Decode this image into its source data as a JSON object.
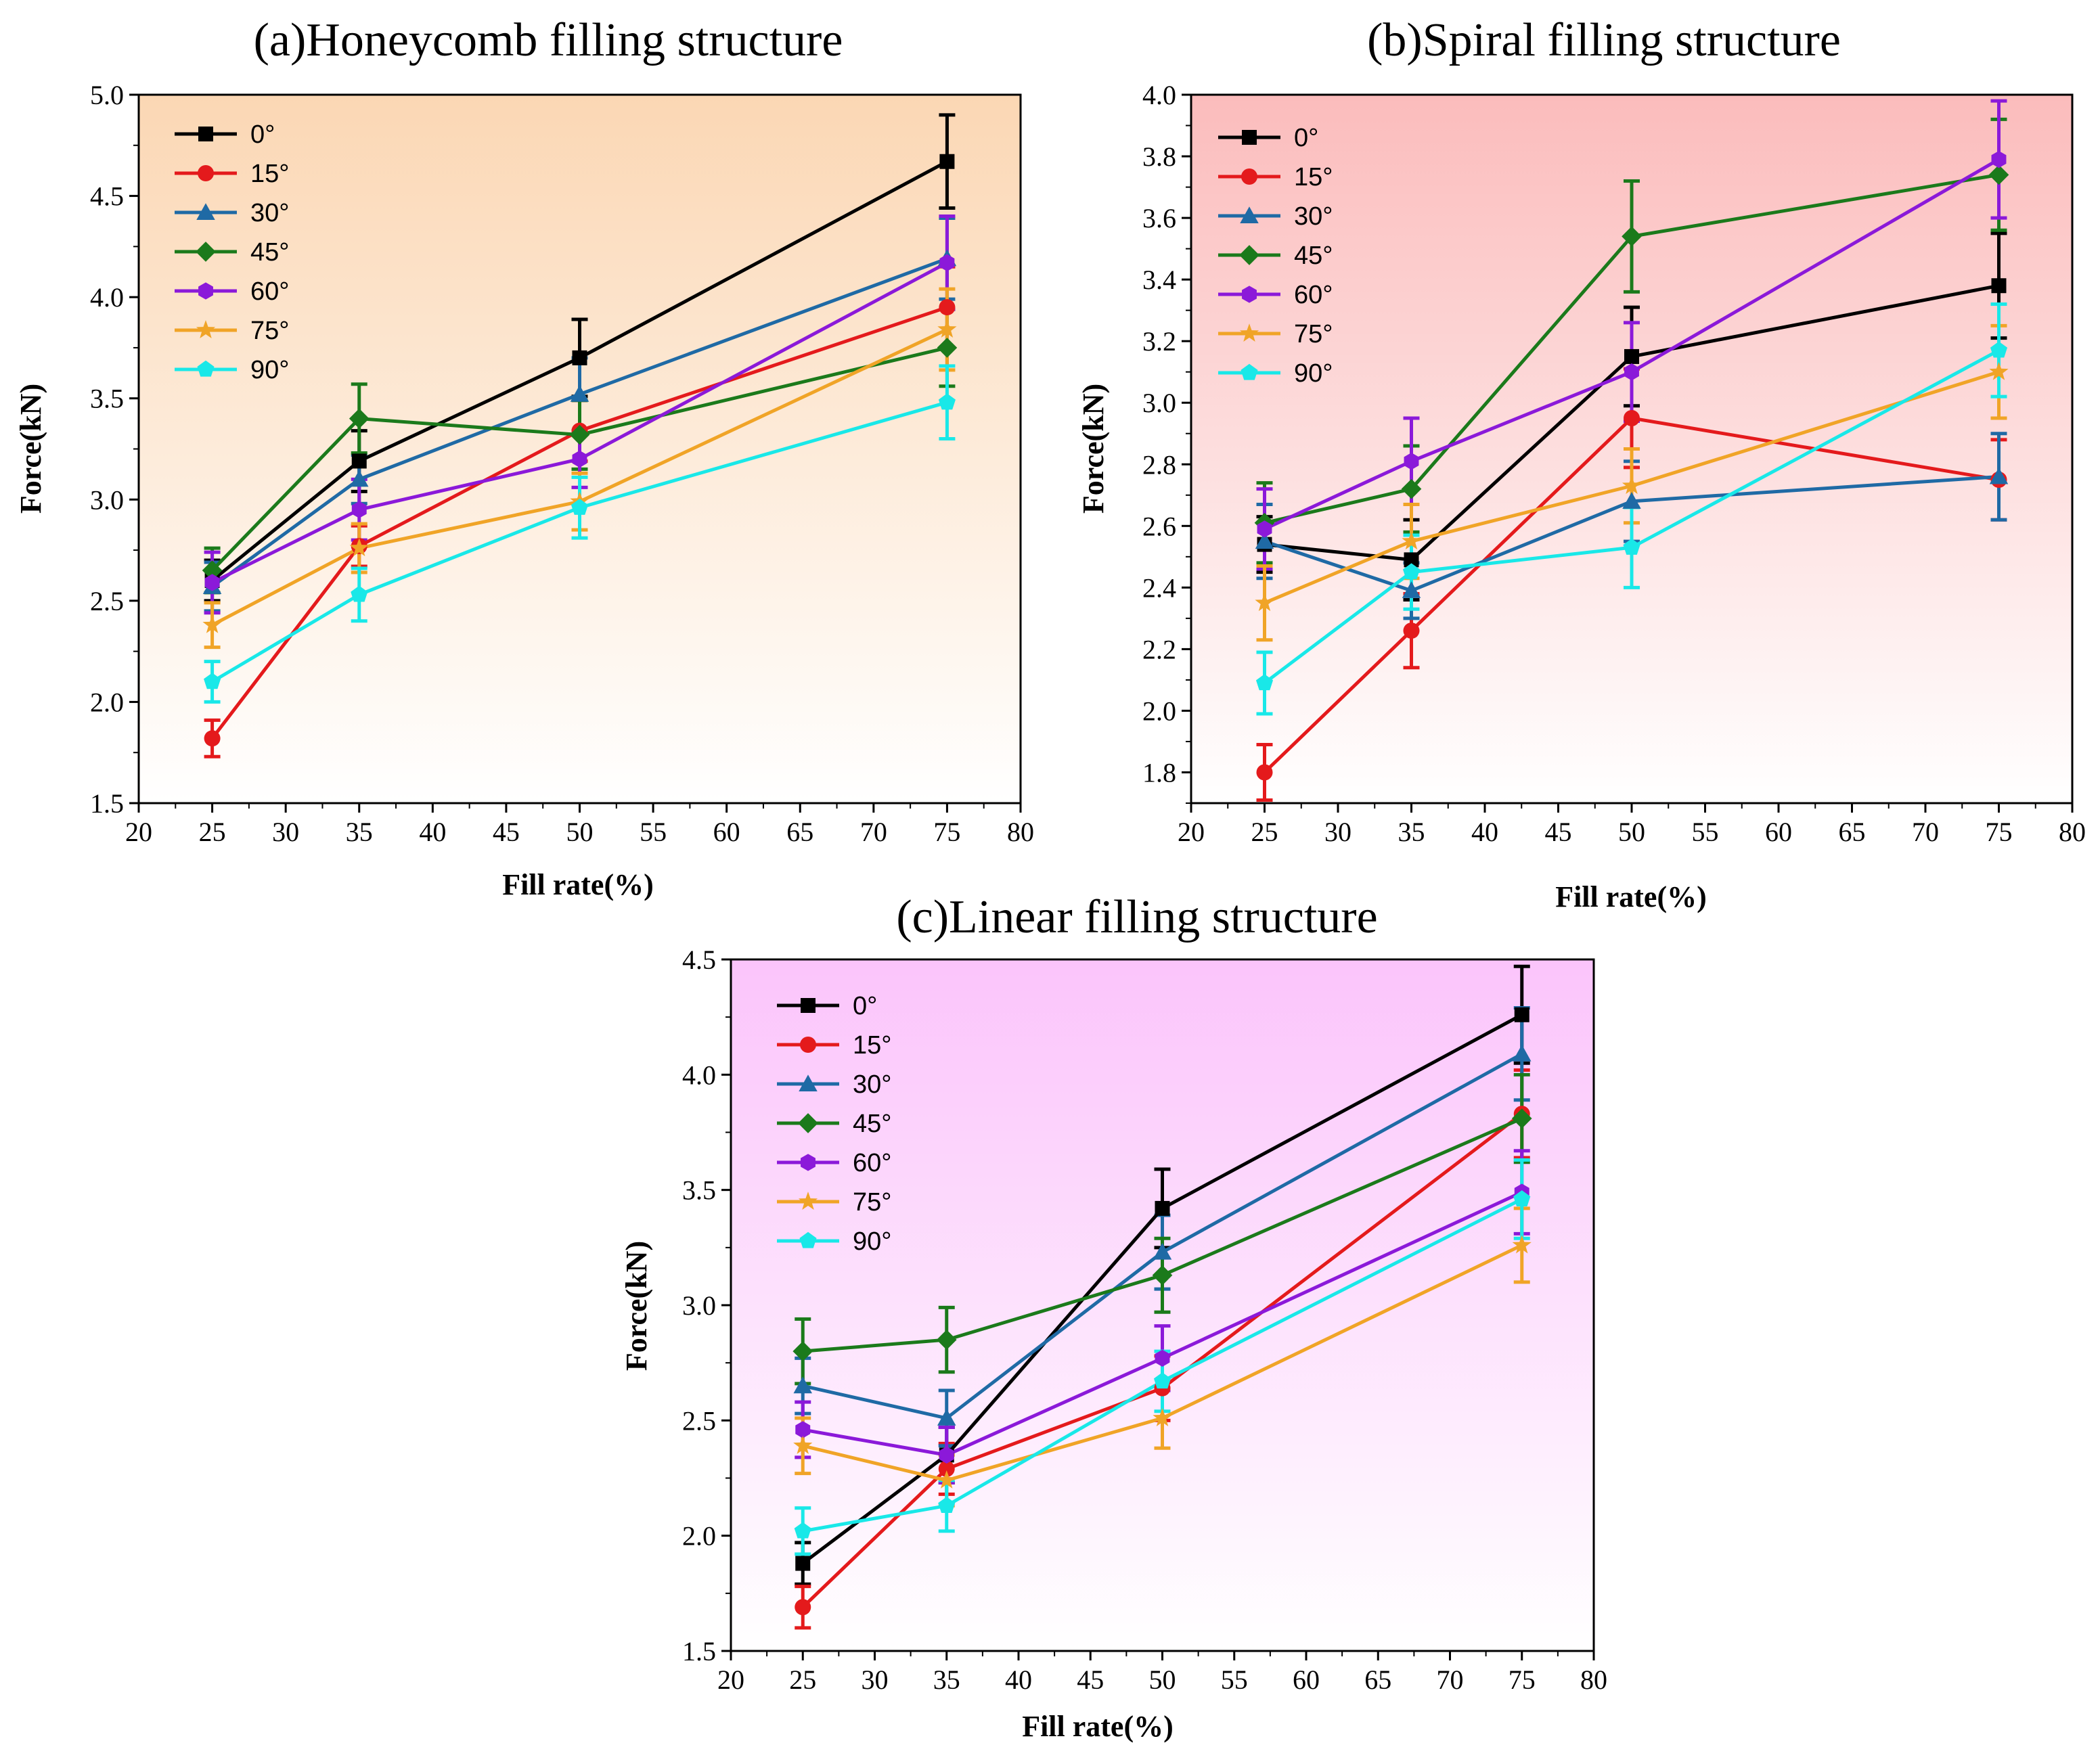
{
  "chart_data": [
    {
      "type": "line",
      "title": "(a)Honeycomb filling structure",
      "xlabel": "Fill rate(%)",
      "ylabel": "Force(kN)",
      "xlim": [
        20,
        80
      ],
      "ylim": [
        1.5,
        5.0
      ],
      "xticks": [
        "20",
        "25",
        "30",
        "35",
        "40",
        "45",
        "50",
        "55",
        "60",
        "65",
        "70",
        "75",
        "80"
      ],
      "yticks": [
        "1.5",
        "2.0",
        "2.5",
        "3.0",
        "3.5",
        "4.0",
        "4.5",
        "5.0"
      ],
      "background": {
        "top": "#fbd7b4",
        "bottom": "#ffffff"
      },
      "legend_position": "top-left",
      "x": [
        25,
        35,
        50,
        75
      ],
      "series": [
        {
          "name": "0°",
          "color": "#000000",
          "marker": "square",
          "values": [
            2.6,
            3.19,
            3.7,
            4.67
          ],
          "errors": [
            0.1,
            0.15,
            0.19,
            0.23
          ]
        },
        {
          "name": "15°",
          "color": "#e41a1c",
          "marker": "circle",
          "values": [
            1.82,
            2.77,
            3.34,
            3.95
          ],
          "errors": [
            0.09,
            0.1,
            0.15,
            0.2
          ]
        },
        {
          "name": "30°",
          "color": "#1f6aa5",
          "marker": "triangle",
          "values": [
            2.57,
            3.1,
            3.52,
            4.19
          ],
          "errors": [
            0.12,
            0.12,
            0.18,
            0.2
          ]
        },
        {
          "name": "45°",
          "color": "#1b7a1b",
          "marker": "diamond",
          "values": [
            2.65,
            3.4,
            3.32,
            3.75
          ],
          "errors": [
            0.11,
            0.17,
            0.17,
            0.19
          ]
        },
        {
          "name": "60°",
          "color": "#8b19d9",
          "marker": "hexagon",
          "values": [
            2.59,
            2.95,
            3.2,
            4.17
          ],
          "errors": [
            0.15,
            0.15,
            0.14,
            0.23
          ]
        },
        {
          "name": "75°",
          "color": "#f0a427",
          "marker": "star",
          "values": [
            2.38,
            2.76,
            2.99,
            3.84
          ],
          "errors": [
            0.11,
            0.12,
            0.14,
            0.2
          ]
        },
        {
          "name": "90°",
          "color": "#19e8e8",
          "marker": "pentagon",
          "values": [
            2.1,
            2.53,
            2.96,
            3.48
          ],
          "errors": [
            0.1,
            0.13,
            0.15,
            0.18
          ]
        }
      ]
    },
    {
      "type": "line",
      "title": "(b)Spiral filling structure",
      "xlabel": "Fill rate(%)",
      "ylabel": "Force(kN)",
      "xlim": [
        20,
        80
      ],
      "ylim": [
        1.7,
        4.0
      ],
      "xticks": [
        "20",
        "25",
        "30",
        "35",
        "40",
        "45",
        "50",
        "55",
        "60",
        "65",
        "70",
        "75",
        "80"
      ],
      "yticks": [
        "1.8",
        "2.0",
        "2.2",
        "2.4",
        "2.6",
        "2.8",
        "3.0",
        "3.2",
        "3.4",
        "3.6",
        "3.8",
        "4.0"
      ],
      "background": {
        "top": "#fbbcbc",
        "bottom": "#ffffff"
      },
      "legend_position": "top-left",
      "x": [
        25,
        35,
        50,
        75
      ],
      "series": [
        {
          "name": "0°",
          "color": "#000000",
          "marker": "square",
          "values": [
            2.54,
            2.49,
            3.15,
            3.38
          ],
          "errors": [
            0.09,
            0.13,
            0.16,
            0.17
          ]
        },
        {
          "name": "15°",
          "color": "#e41a1c",
          "marker": "circle",
          "values": [
            1.8,
            2.26,
            2.95,
            2.75
          ],
          "errors": [
            0.09,
            0.12,
            0.16,
            0.13
          ]
        },
        {
          "name": "30°",
          "color": "#1f6aa5",
          "marker": "triangle",
          "values": [
            2.55,
            2.39,
            2.68,
            2.76
          ],
          "errors": [
            0.12,
            0.09,
            0.13,
            0.14
          ]
        },
        {
          "name": "45°",
          "color": "#1b7a1b",
          "marker": "diamond",
          "values": [
            2.61,
            2.72,
            3.54,
            3.74
          ],
          "errors": [
            0.13,
            0.14,
            0.18,
            0.18
          ]
        },
        {
          "name": "60°",
          "color": "#8b19d9",
          "marker": "hexagon",
          "values": [
            2.59,
            2.81,
            3.1,
            3.79
          ],
          "errors": [
            0.13,
            0.14,
            0.16,
            0.19
          ]
        },
        {
          "name": "75°",
          "color": "#f0a427",
          "marker": "star",
          "values": [
            2.35,
            2.55,
            2.73,
            3.1
          ],
          "errors": [
            0.12,
            0.12,
            0.12,
            0.15
          ]
        },
        {
          "name": "90°",
          "color": "#19e8e8",
          "marker": "pentagon",
          "values": [
            2.09,
            2.45,
            2.53,
            3.17
          ],
          "errors": [
            0.1,
            0.12,
            0.13,
            0.15
          ]
        }
      ]
    },
    {
      "type": "line",
      "title": "(c)Linear filling structure",
      "xlabel": "Fill rate(%)",
      "ylabel": "Force(kN)",
      "xlim": [
        20,
        80
      ],
      "ylim": [
        1.5,
        4.5
      ],
      "xticks": [
        "20",
        "25",
        "30",
        "35",
        "40",
        "45",
        "50",
        "55",
        "60",
        "65",
        "70",
        "75",
        "80"
      ],
      "yticks": [
        "1.5",
        "2.0",
        "2.5",
        "3.0",
        "3.5",
        "4.0",
        "4.5"
      ],
      "background": {
        "top": "#fbc4fb",
        "bottom": "#ffffff"
      },
      "legend_position": "top-left",
      "x": [
        25,
        35,
        50,
        75
      ],
      "series": [
        {
          "name": "0°",
          "color": "#000000",
          "marker": "square",
          "values": [
            1.88,
            2.35,
            3.42,
            4.26
          ],
          "errors": [
            0.09,
            0.12,
            0.17,
            0.21
          ]
        },
        {
          "name": "15°",
          "color": "#e41a1c",
          "marker": "circle",
          "values": [
            1.69,
            2.29,
            2.64,
            3.83
          ],
          "errors": [
            0.09,
            0.11,
            0.14,
            0.19
          ]
        },
        {
          "name": "30°",
          "color": "#1f6aa5",
          "marker": "triangle",
          "values": [
            2.65,
            2.51,
            3.23,
            4.09
          ],
          "errors": [
            0.12,
            0.12,
            0.16,
            0.2
          ]
        },
        {
          "name": "45°",
          "color": "#1b7a1b",
          "marker": "diamond",
          "values": [
            2.8,
            2.85,
            3.13,
            3.81
          ],
          "errors": [
            0.14,
            0.14,
            0.16,
            0.19
          ]
        },
        {
          "name": "60°",
          "color": "#8b19d9",
          "marker": "hexagon",
          "values": [
            2.46,
            2.35,
            2.77,
            3.49
          ],
          "errors": [
            0.12,
            0.12,
            0.14,
            0.18
          ]
        },
        {
          "name": "75°",
          "color": "#f0a427",
          "marker": "star",
          "values": [
            2.39,
            2.24,
            2.51,
            3.26
          ],
          "errors": [
            0.12,
            0.11,
            0.13,
            0.16
          ]
        },
        {
          "name": "90°",
          "color": "#19e8e8",
          "marker": "pentagon",
          "values": [
            2.02,
            2.13,
            2.67,
            3.46
          ],
          "errors": [
            0.1,
            0.11,
            0.13,
            0.17
          ]
        }
      ]
    }
  ]
}
